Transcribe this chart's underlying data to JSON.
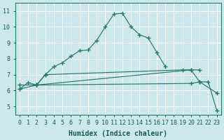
{
  "xlabel": "Humidex (Indice chaleur)",
  "xlim": [
    -0.5,
    23.5
  ],
  "ylim": [
    4.5,
    11.5
  ],
  "xticks": [
    0,
    1,
    2,
    3,
    4,
    5,
    6,
    7,
    8,
    9,
    10,
    11,
    12,
    13,
    14,
    15,
    16,
    17,
    18,
    19,
    20,
    21,
    22,
    23
  ],
  "yticks": [
    5,
    6,
    7,
    8,
    9,
    10,
    11
  ],
  "bg_color": "#cde8ec",
  "line_color": "#2a7868",
  "grid_color": "#ffffff",
  "series": [
    {
      "x": [
        0,
        1,
        2,
        3,
        4,
        5,
        6,
        7,
        8,
        9,
        10,
        11,
        12,
        13,
        14,
        15,
        16,
        17
      ],
      "y": [
        6.1,
        6.5,
        6.35,
        7.0,
        7.5,
        7.75,
        8.15,
        8.5,
        8.55,
        9.15,
        10.0,
        10.8,
        10.85,
        10.0,
        9.5,
        9.3,
        8.4,
        7.5
      ]
    },
    {
      "x": [
        2,
        3,
        19,
        20,
        21,
        23
      ],
      "y": [
        6.35,
        7.0,
        7.3,
        7.3,
        6.55,
        5.85
      ]
    },
    {
      "x": [
        0,
        2,
        20,
        21,
        22,
        23
      ],
      "y": [
        6.35,
        6.35,
        6.45,
        6.55,
        6.55,
        4.75
      ]
    },
    {
      "x": [
        0,
        2,
        20,
        21
      ],
      "y": [
        6.1,
        6.35,
        7.3,
        7.3
      ]
    }
  ]
}
